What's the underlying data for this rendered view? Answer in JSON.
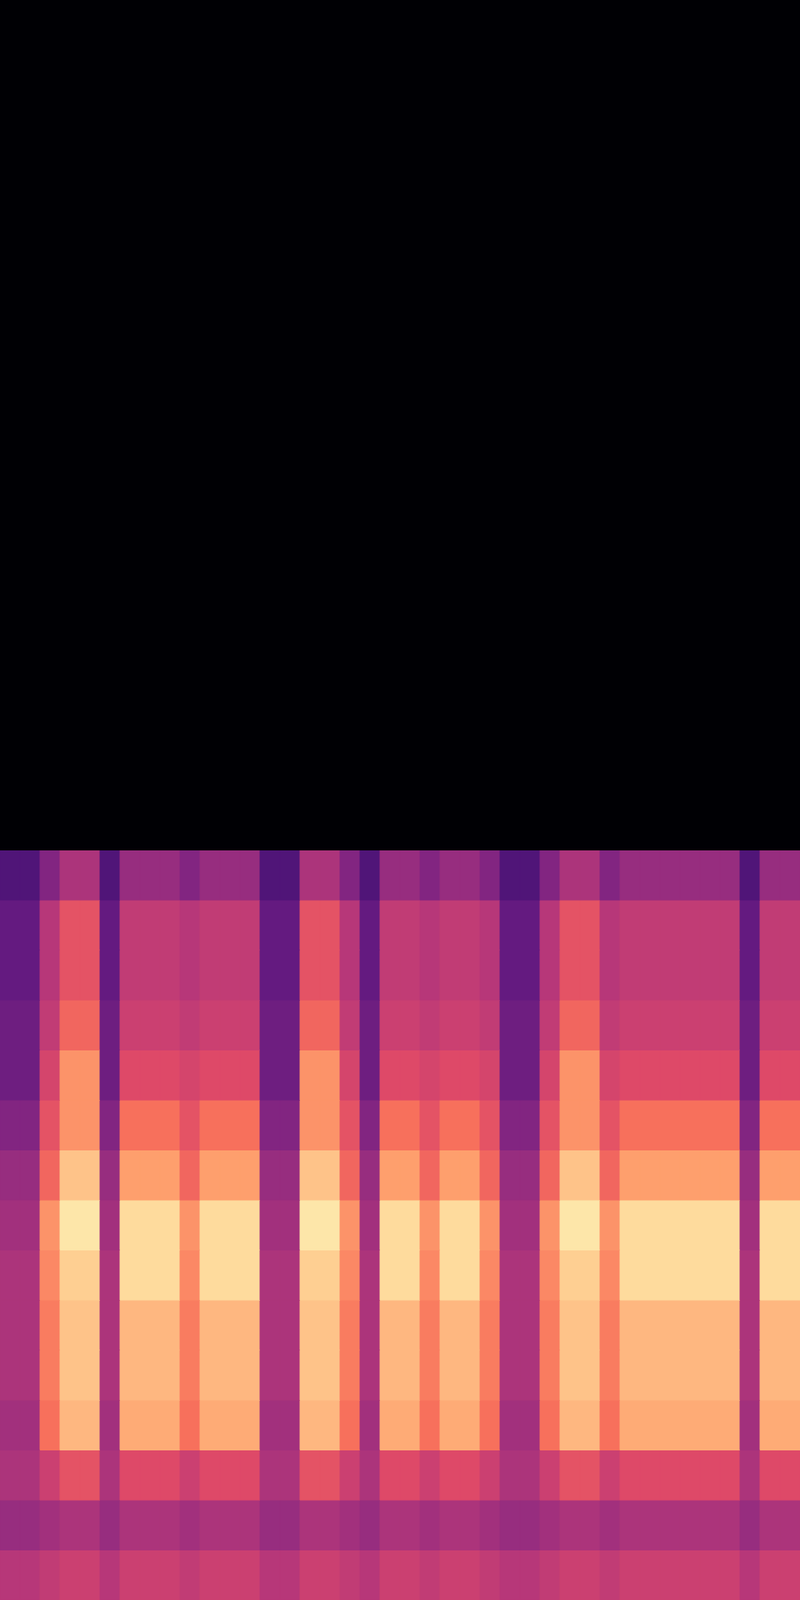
{
  "chart_data": {
    "type": "heatmap",
    "xlim": [
      0,
      40
    ],
    "ylim": [
      0,
      32
    ],
    "clim": [
      -80,
      0
    ],
    "tick_labels": false,
    "values": [
      [
        -40,
        -40,
        -38,
        -36,
        -36,
        -40,
        -36,
        -36,
        -36,
        -38,
        -36,
        -36,
        -36,
        -40,
        -40,
        -36,
        -36,
        -38,
        -40,
        -36,
        -36,
        -38,
        -36,
        -36,
        -38,
        -40,
        -40,
        -38,
        -36,
        -36,
        -38,
        -36,
        -36,
        -36,
        -36,
        -36,
        -36,
        -40,
        -36,
        -36
      ],
      [
        -46,
        -46,
        -44,
        -42,
        -42,
        -46,
        -42,
        -42,
        -42,
        -44,
        -42,
        -42,
        -42,
        -46,
        -46,
        -42,
        -42,
        -44,
        -46,
        -42,
        -42,
        -44,
        -42,
        -42,
        -44,
        -46,
        -46,
        -44,
        -42,
        -42,
        -44,
        -42,
        -42,
        -42,
        -42,
        -42,
        -42,
        -46,
        -42,
        -42
      ],
      [
        -42,
        -42,
        -36,
        -30,
        -30,
        -42,
        -32,
        -32,
        -32,
        -36,
        -32,
        -32,
        -32,
        -42,
        -42,
        -30,
        -30,
        -36,
        -42,
        -32,
        -32,
        -36,
        -32,
        -32,
        -36,
        -42,
        -42,
        -36,
        -30,
        -30,
        -36,
        -32,
        -32,
        -32,
        -32,
        -32,
        -32,
        -42,
        -32,
        -32
      ],
      [
        -44,
        -44,
        -24,
        -12,
        -12,
        -44,
        -14,
        -14,
        -14,
        -24,
        -14,
        -14,
        -14,
        -44,
        -44,
        -12,
        -12,
        -24,
        -44,
        -14,
        -14,
        -24,
        -14,
        -14,
        -24,
        -44,
        -44,
        -24,
        -12,
        -12,
        -24,
        -14,
        -14,
        -14,
        -14,
        -14,
        -14,
        -44,
        -14,
        -14
      ],
      [
        -42,
        -42,
        -22,
        -10,
        -10,
        -42,
        -12,
        -12,
        -12,
        -22,
        -12,
        -12,
        -12,
        -42,
        -42,
        -10,
        -10,
        -22,
        -42,
        -12,
        -12,
        -22,
        -12,
        -12,
        -22,
        -42,
        -42,
        -22,
        -10,
        -10,
        -22,
        -12,
        -12,
        -12,
        -12,
        -12,
        -12,
        -42,
        -12,
        -12
      ],
      [
        -42,
        -42,
        -22,
        -10,
        -10,
        -42,
        -12,
        -12,
        -12,
        -22,
        -12,
        -12,
        -12,
        -42,
        -42,
        -10,
        -10,
        -22,
        -42,
        -12,
        -12,
        -22,
        -12,
        -12,
        -22,
        -42,
        -42,
        -22,
        -10,
        -10,
        -22,
        -12,
        -12,
        -12,
        -12,
        -12,
        -12,
        -42,
        -12,
        -12
      ],
      [
        -42,
        -42,
        -20,
        -8,
        -8,
        -42,
        -6,
        -6,
        -6,
        -20,
        -6,
        -6,
        -6,
        -42,
        -42,
        -8,
        -8,
        -20,
        -42,
        -6,
        -6,
        -20,
        -6,
        -6,
        -20,
        -42,
        -42,
        -20,
        -8,
        -8,
        -20,
        -6,
        -6,
        -6,
        -6,
        -6,
        -6,
        -42,
        -6,
        -6
      ],
      [
        -44,
        -44,
        -18,
        -4,
        -4,
        -44,
        -6,
        -6,
        -6,
        -18,
        -6,
        -6,
        -6,
        -44,
        -44,
        -4,
        -4,
        -18,
        -44,
        -6,
        -6,
        -18,
        -6,
        -6,
        -18,
        -44,
        -44,
        -18,
        -4,
        -4,
        -18,
        -6,
        -6,
        -6,
        -6,
        -6,
        -6,
        -44,
        -6,
        -6
      ],
      [
        -46,
        -46,
        -26,
        -10,
        -10,
        -46,
        -16,
        -16,
        -16,
        -26,
        -16,
        -16,
        -16,
        -46,
        -46,
        -10,
        -10,
        -26,
        -46,
        -16,
        -16,
        -26,
        -16,
        -16,
        -26,
        -46,
        -46,
        -26,
        -10,
        -10,
        -26,
        -16,
        -16,
        -16,
        -16,
        -16,
        -16,
        -46,
        -16,
        -16
      ],
      [
        -50,
        -50,
        -30,
        -18,
        -18,
        -50,
        -24,
        -24,
        -24,
        -30,
        -24,
        -24,
        -24,
        -50,
        -50,
        -18,
        -18,
        -30,
        -50,
        -24,
        -24,
        -30,
        -24,
        -24,
        -30,
        -50,
        -50,
        -30,
        -18,
        -18,
        -30,
        -24,
        -24,
        -24,
        -24,
        -24,
        -24,
        -50,
        -24,
        -24
      ],
      [
        -54,
        -54,
        -34,
        -18,
        -18,
        -54,
        -32,
        -32,
        -32,
        -34,
        -32,
        -32,
        -32,
        -54,
        -54,
        -18,
        -18,
        -34,
        -54,
        -32,
        -32,
        -34,
        -32,
        -32,
        -34,
        -54,
        -54,
        -34,
        -18,
        -18,
        -34,
        -32,
        -32,
        -32,
        -32,
        -32,
        -32,
        -54,
        -32,
        -32
      ],
      [
        -54,
        -54,
        -38,
        -26,
        -26,
        -54,
        -36,
        -36,
        -36,
        -38,
        -36,
        -36,
        -36,
        -54,
        -54,
        -26,
        -26,
        -38,
        -54,
        -36,
        -36,
        -38,
        -36,
        -36,
        -38,
        -54,
        -54,
        -38,
        -26,
        -26,
        -38,
        -36,
        -36,
        -36,
        -36,
        -36,
        -36,
        -54,
        -36,
        -36
      ],
      [
        -56,
        -56,
        -40,
        -30,
        -30,
        -56,
        -38,
        -38,
        -38,
        -40,
        -38,
        -38,
        -38,
        -56,
        -56,
        -30,
        -30,
        -40,
        -56,
        -38,
        -38,
        -40,
        -38,
        -38,
        -40,
        -56,
        -56,
        -40,
        -30,
        -30,
        -40,
        -38,
        -38,
        -38,
        -38,
        -38,
        -38,
        -56,
        -38,
        -38
      ],
      [
        -56,
        -56,
        -40,
        -30,
        -30,
        -56,
        -38,
        -38,
        -38,
        -40,
        -38,
        -38,
        -38,
        -56,
        -56,
        -30,
        -30,
        -40,
        -56,
        -38,
        -38,
        -40,
        -38,
        -38,
        -40,
        -56,
        -56,
        -40,
        -30,
        -30,
        -40,
        -38,
        -38,
        -38,
        -38,
        -38,
        -38,
        -56,
        -38,
        -38
      ],
      [
        -60,
        -60,
        -50,
        -42,
        -42,
        -60,
        -46,
        -46,
        -46,
        -50,
        -46,
        -46,
        -46,
        -60,
        -60,
        -42,
        -42,
        -50,
        -60,
        -46,
        -46,
        -50,
        -46,
        -46,
        -50,
        -60,
        -60,
        -50,
        -42,
        -42,
        -50,
        -46,
        -46,
        -46,
        -46,
        -46,
        -46,
        -60,
        -46,
        -46
      ],
      [
        -80,
        -80,
        -80,
        -80,
        -80,
        -80,
        -80,
        -80,
        -80,
        -80,
        -80,
        -80,
        -80,
        -80,
        -80,
        -80,
        -80,
        -80,
        -80,
        -80,
        -80,
        -80,
        -80,
        -80,
        -80,
        -80,
        -80,
        -80,
        -80,
        -80,
        -80,
        -80,
        -80,
        -80,
        -80,
        -80,
        -80,
        -80,
        -80,
        -80
      ],
      [
        -80,
        -80,
        -80,
        -80,
        -80,
        -80,
        -80,
        -80,
        -80,
        -80,
        -80,
        -80,
        -80,
        -80,
        -80,
        -80,
        -80,
        -80,
        -80,
        -80,
        -80,
        -80,
        -80,
        -80,
        -80,
        -80,
        -80,
        -80,
        -80,
        -80,
        -80,
        -80,
        -80,
        -80,
        -80,
        -80,
        -80,
        -80,
        -80,
        -80
      ],
      [
        -80,
        -80,
        -80,
        -80,
        -80,
        -80,
        -80,
        -80,
        -80,
        -80,
        -80,
        -80,
        -80,
        -80,
        -80,
        -80,
        -80,
        -80,
        -80,
        -80,
        -80,
        -80,
        -80,
        -80,
        -80,
        -80,
        -80,
        -80,
        -80,
        -80,
        -80,
        -80,
        -80,
        -80,
        -80,
        -80,
        -80,
        -80,
        -80,
        -80
      ],
      [
        -80,
        -80,
        -80,
        -80,
        -80,
        -80,
        -80,
        -80,
        -80,
        -80,
        -80,
        -80,
        -80,
        -80,
        -80,
        -80,
        -80,
        -80,
        -80,
        -80,
        -80,
        -80,
        -80,
        -80,
        -80,
        -80,
        -80,
        -80,
        -80,
        -80,
        -80,
        -80,
        -80,
        -80,
        -80,
        -80,
        -80,
        -80,
        -80,
        -80
      ],
      [
        -80,
        -80,
        -80,
        -80,
        -80,
        -80,
        -80,
        -80,
        -80,
        -80,
        -80,
        -80,
        -80,
        -80,
        -80,
        -80,
        -80,
        -80,
        -80,
        -80,
        -80,
        -80,
        -80,
        -80,
        -80,
        -80,
        -80,
        -80,
        -80,
        -80,
        -80,
        -80,
        -80,
        -80,
        -80,
        -80,
        -80,
        -80,
        -80,
        -80
      ],
      [
        -80,
        -80,
        -80,
        -80,
        -80,
        -80,
        -80,
        -80,
        -80,
        -80,
        -80,
        -80,
        -80,
        -80,
        -80,
        -80,
        -80,
        -80,
        -80,
        -80,
        -80,
        -80,
        -80,
        -80,
        -80,
        -80,
        -80,
        -80,
        -80,
        -80,
        -80,
        -80,
        -80,
        -80,
        -80,
        -80,
        -80,
        -80,
        -80,
        -80
      ],
      [
        -80,
        -80,
        -80,
        -80,
        -80,
        -80,
        -80,
        -80,
        -80,
        -80,
        -80,
        -80,
        -80,
        -80,
        -80,
        -80,
        -80,
        -80,
        -80,
        -80,
        -80,
        -80,
        -80,
        -80,
        -80,
        -80,
        -80,
        -80,
        -80,
        -80,
        -80,
        -80,
        -80,
        -80,
        -80,
        -80,
        -80,
        -80,
        -80,
        -80
      ],
      [
        -80,
        -80,
        -80,
        -80,
        -80,
        -80,
        -80,
        -80,
        -80,
        -80,
        -80,
        -80,
        -80,
        -80,
        -80,
        -80,
        -80,
        -80,
        -80,
        -80,
        -80,
        -80,
        -80,
        -80,
        -80,
        -80,
        -80,
        -80,
        -80,
        -80,
        -80,
        -80,
        -80,
        -80,
        -80,
        -80,
        -80,
        -80,
        -80,
        -80
      ],
      [
        -80,
        -80,
        -80,
        -80,
        -80,
        -80,
        -80,
        -80,
        -80,
        -80,
        -80,
        -80,
        -80,
        -80,
        -80,
        -80,
        -80,
        -80,
        -80,
        -80,
        -80,
        -80,
        -80,
        -80,
        -80,
        -80,
        -80,
        -80,
        -80,
        -80,
        -80,
        -80,
        -80,
        -80,
        -80,
        -80,
        -80,
        -80,
        -80,
        -80
      ],
      [
        -80,
        -80,
        -80,
        -80,
        -80,
        -80,
        -80,
        -80,
        -80,
        -80,
        -80,
        -80,
        -80,
        -80,
        -80,
        -80,
        -80,
        -80,
        -80,
        -80,
        -80,
        -80,
        -80,
        -80,
        -80,
        -80,
        -80,
        -80,
        -80,
        -80,
        -80,
        -80,
        -80,
        -80,
        -80,
        -80,
        -80,
        -80,
        -80,
        -80
      ],
      [
        -80,
        -80,
        -80,
        -80,
        -80,
        -80,
        -80,
        -80,
        -80,
        -80,
        -80,
        -80,
        -80,
        -80,
        -80,
        -80,
        -80,
        -80,
        -80,
        -80,
        -80,
        -80,
        -80,
        -80,
        -80,
        -80,
        -80,
        -80,
        -80,
        -80,
        -80,
        -80,
        -80,
        -80,
        -80,
        -80,
        -80,
        -80,
        -80,
        -80
      ],
      [
        -80,
        -80,
        -80,
        -80,
        -80,
        -80,
        -80,
        -80,
        -80,
        -80,
        -80,
        -80,
        -80,
        -80,
        -80,
        -80,
        -80,
        -80,
        -80,
        -80,
        -80,
        -80,
        -80,
        -80,
        -80,
        -80,
        -80,
        -80,
        -80,
        -80,
        -80,
        -80,
        -80,
        -80,
        -80,
        -80,
        -80,
        -80,
        -80,
        -80
      ],
      [
        -80,
        -80,
        -80,
        -80,
        -80,
        -80,
        -80,
        -80,
        -80,
        -80,
        -80,
        -80,
        -80,
        -80,
        -80,
        -80,
        -80,
        -80,
        -80,
        -80,
        -80,
        -80,
        -80,
        -80,
        -80,
        -80,
        -80,
        -80,
        -80,
        -80,
        -80,
        -80,
        -80,
        -80,
        -80,
        -80,
        -80,
        -80,
        -80,
        -80
      ],
      [
        -80,
        -80,
        -80,
        -80,
        -80,
        -80,
        -80,
        -80,
        -80,
        -80,
        -80,
        -80,
        -80,
        -80,
        -80,
        -80,
        -80,
        -80,
        -80,
        -80,
        -80,
        -80,
        -80,
        -80,
        -80,
        -80,
        -80,
        -80,
        -80,
        -80,
        -80,
        -80,
        -80,
        -80,
        -80,
        -80,
        -80,
        -80,
        -80,
        -80
      ],
      [
        -80,
        -80,
        -80,
        -80,
        -80,
        -80,
        -80,
        -80,
        -80,
        -80,
        -80,
        -80,
        -80,
        -80,
        -80,
        -80,
        -80,
        -80,
        -80,
        -80,
        -80,
        -80,
        -80,
        -80,
        -80,
        -80,
        -80,
        -80,
        -80,
        -80,
        -80,
        -80,
        -80,
        -80,
        -80,
        -80,
        -80,
        -80,
        -80,
        -80
      ],
      [
        -80,
        -80,
        -80,
        -80,
        -80,
        -80,
        -80,
        -80,
        -80,
        -80,
        -80,
        -80,
        -80,
        -80,
        -80,
        -80,
        -80,
        -80,
        -80,
        -80,
        -80,
        -80,
        -80,
        -80,
        -80,
        -80,
        -80,
        -80,
        -80,
        -80,
        -80,
        -80,
        -80,
        -80,
        -80,
        -80,
        -80,
        -80,
        -80,
        -80
      ],
      [
        -80,
        -80,
        -80,
        -80,
        -80,
        -80,
        -80,
        -80,
        -80,
        -80,
        -80,
        -80,
        -80,
        -80,
        -80,
        -80,
        -80,
        -80,
        -80,
        -80,
        -80,
        -80,
        -80,
        -80,
        -80,
        -80,
        -80,
        -80,
        -80,
        -80,
        -80,
        -80,
        -80,
        -80,
        -80,
        -80,
        -80,
        -80,
        -80,
        -80
      ]
    ]
  }
}
